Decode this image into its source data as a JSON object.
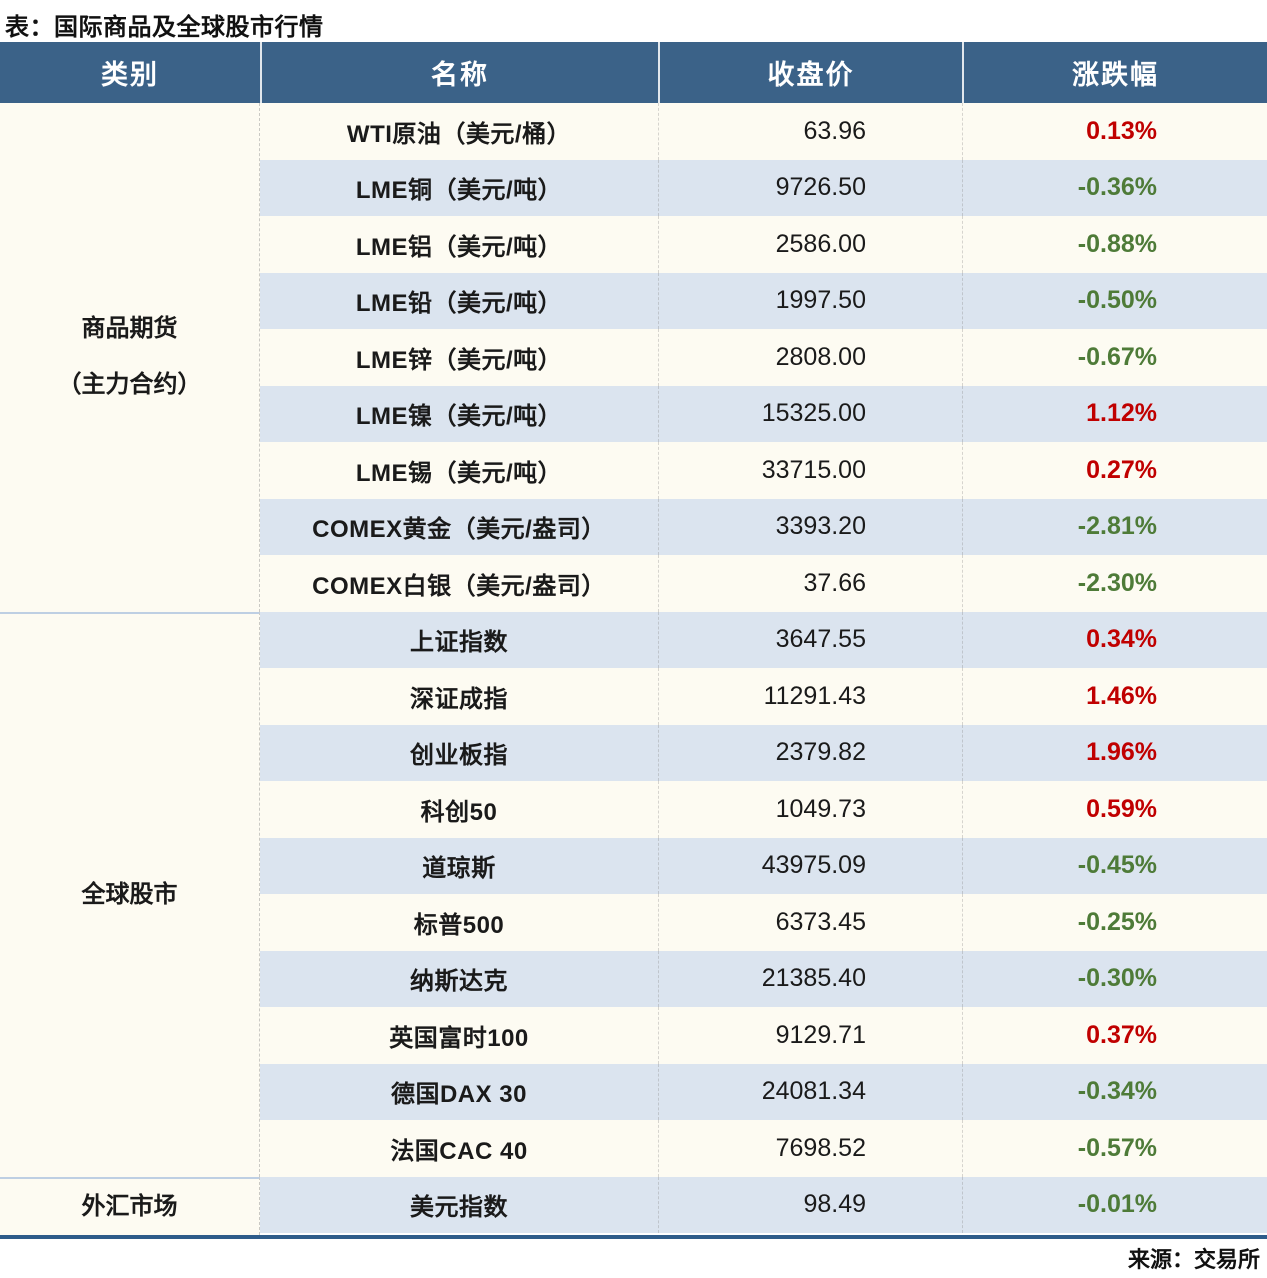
{
  "colors": {
    "header_bg": "#3B6288",
    "row_base": "#FDFBF2",
    "row_alt": "#DBE4EF",
    "up_red": "#C00000",
    "down_green": "#4E7B38",
    "group_divider": "#BECFE3",
    "table_bottom_border": "#2E5C8A"
  },
  "chart_data": {
    "type": "table",
    "title": "表：国际商品及全球股市行情",
    "source": "来源：交易所",
    "columns": [
      "类别",
      "名称",
      "收盘价",
      "涨跌幅"
    ],
    "groups": [
      {
        "category": "商品期货\n（主力合约）",
        "rows": [
          {
            "name": "WTI原油（美元/桶）",
            "close": "63.96",
            "change": "0.13%"
          },
          {
            "name": "LME铜（美元/吨）",
            "close": "9726.50",
            "change": "-0.36%"
          },
          {
            "name": "LME铝（美元/吨）",
            "close": "2586.00",
            "change": "-0.88%"
          },
          {
            "name": "LME铅（美元/吨）",
            "close": "1997.50",
            "change": "-0.50%"
          },
          {
            "name": "LME锌（美元/吨）",
            "close": "2808.00",
            "change": "-0.67%"
          },
          {
            "name": "LME镍（美元/吨）",
            "close": "15325.00",
            "change": "1.12%"
          },
          {
            "name": "LME锡（美元/吨）",
            "close": "33715.00",
            "change": "0.27%"
          },
          {
            "name": "COMEX黄金（美元/盎司）",
            "close": "3393.20",
            "change": "-2.81%"
          },
          {
            "name": "COMEX白银（美元/盎司）",
            "close": "37.66",
            "change": "-2.30%"
          }
        ]
      },
      {
        "category": "全球股市",
        "rows": [
          {
            "name": "上证指数",
            "close": "3647.55",
            "change": "0.34%"
          },
          {
            "name": "深证成指",
            "close": "11291.43",
            "change": "1.46%"
          },
          {
            "name": "创业板指",
            "close": "2379.82",
            "change": "1.96%"
          },
          {
            "name": "科创50",
            "close": "1049.73",
            "change": "0.59%"
          },
          {
            "name": "道琼斯",
            "close": "43975.09",
            "change": "-0.45%"
          },
          {
            "name": "标普500",
            "close": "6373.45",
            "change": "-0.25%"
          },
          {
            "name": "纳斯达克",
            "close": "21385.40",
            "change": "-0.30%"
          },
          {
            "name": "英国富时100",
            "close": "9129.71",
            "change": "0.37%"
          },
          {
            "name": "德国DAX 30",
            "close": "24081.34",
            "change": "-0.34%"
          },
          {
            "name": "法国CAC 40",
            "close": "7698.52",
            "change": "-0.57%"
          }
        ]
      },
      {
        "category": "外汇市场",
        "rows": [
          {
            "name": "美元指数",
            "close": "98.49",
            "change": "-0.01%"
          }
        ]
      }
    ]
  }
}
